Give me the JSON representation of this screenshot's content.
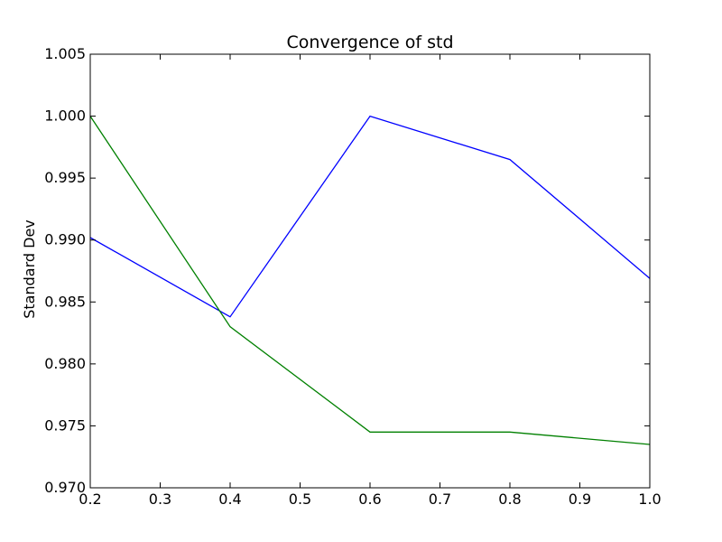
{
  "chart_data": {
    "type": "line",
    "title": "Convergence of std",
    "xlabel": "",
    "ylabel": "Standard Dev",
    "xlim": [
      0.2,
      1.0
    ],
    "ylim": [
      0.97,
      1.005
    ],
    "x_ticks": [
      "0.2",
      "0.3",
      "0.4",
      "0.5",
      "0.6",
      "0.7",
      "0.8",
      "0.9",
      "1.0"
    ],
    "y_ticks": [
      "0.970",
      "0.975",
      "0.980",
      "0.985",
      "0.990",
      "0.995",
      "1.000",
      "1.005"
    ],
    "grid": false,
    "legend": "none",
    "series": [
      {
        "color": "#0000ff",
        "x": [
          0.2,
          0.4,
          0.6,
          0.8,
          1.0
        ],
        "y": [
          0.9902,
          0.9838,
          1.0,
          0.9965,
          0.9869
        ]
      },
      {
        "color": "#008000",
        "x": [
          0.2,
          0.4,
          0.6,
          0.8,
          1.0
        ],
        "y": [
          1.0,
          0.983,
          0.9745,
          0.9745,
          0.9735
        ]
      }
    ]
  }
}
